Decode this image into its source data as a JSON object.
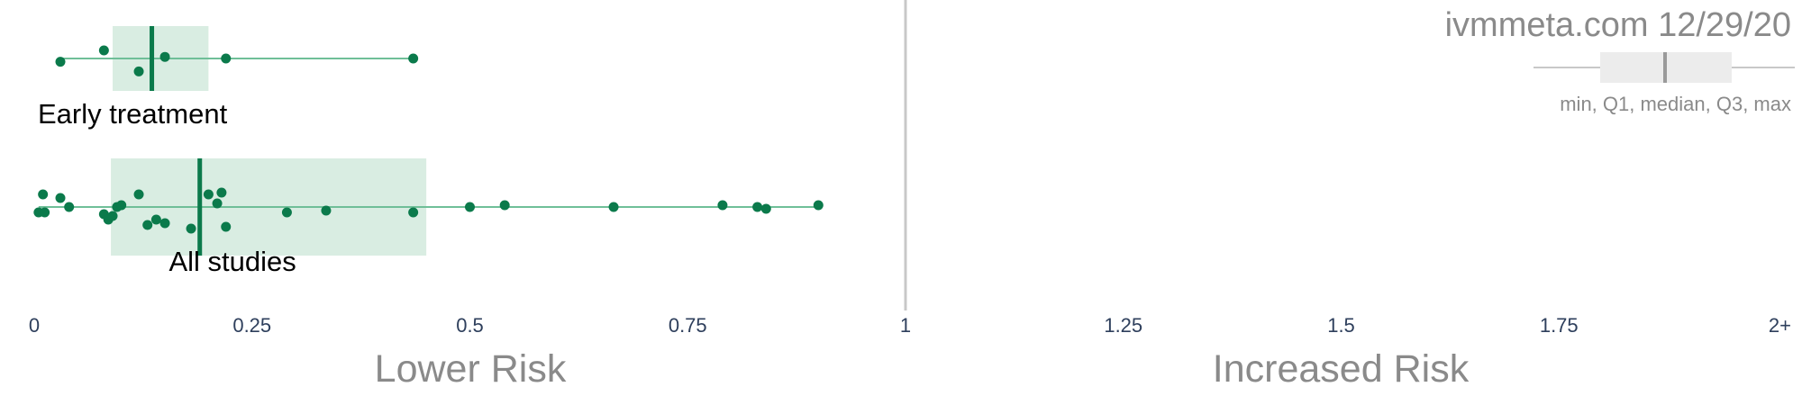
{
  "chart_data": {
    "type": "box-strip",
    "watermark": "ivmmeta.com 12/29/20",
    "legend_caption": "min, Q1, median, Q3, max",
    "x_ticks": [
      "0",
      "0.25",
      "0.5",
      "0.75",
      "1",
      "1.25",
      "1.5",
      "1.75",
      "2+"
    ],
    "xlim": [
      0,
      2
    ],
    "reference_line": 1,
    "region_labels": {
      "lower": "Lower Risk",
      "higher": "Increased Risk"
    },
    "colors": {
      "point": "#0b7a4b",
      "box": "#d9ede2",
      "whisker": "#6fbf98",
      "reference": "#c8c8c8",
      "axis_text": "#2e3f5c",
      "label_gray": "#8a8a8a"
    },
    "groups": [
      {
        "name": "Early treatment",
        "min": 0.03,
        "q1": 0.09,
        "median": 0.135,
        "q3": 0.2,
        "max": 0.435,
        "points": [
          {
            "x": 0.03,
            "j": 0.1
          },
          {
            "x": 0.08,
            "j": -0.25
          },
          {
            "x": 0.12,
            "j": 0.4
          },
          {
            "x": 0.15,
            "j": -0.05
          },
          {
            "x": 0.22,
            "j": 0.0
          },
          {
            "x": 0.435,
            "j": 0.0
          }
        ]
      },
      {
        "name": "All studies",
        "min": 0.005,
        "q1": 0.088,
        "median": 0.19,
        "q3": 0.45,
        "max": 0.9,
        "points": [
          {
            "x": 0.005,
            "j": 0.15
          },
          {
            "x": 0.01,
            "j": -0.35
          },
          {
            "x": 0.012,
            "j": 0.15
          },
          {
            "x": 0.03,
            "j": -0.25
          },
          {
            "x": 0.04,
            "j": 0.0
          },
          {
            "x": 0.08,
            "j": 0.2
          },
          {
            "x": 0.085,
            "j": 0.35
          },
          {
            "x": 0.09,
            "j": 0.25
          },
          {
            "x": 0.095,
            "j": 0.0
          },
          {
            "x": 0.1,
            "j": -0.05
          },
          {
            "x": 0.12,
            "j": -0.35
          },
          {
            "x": 0.13,
            "j": 0.5
          },
          {
            "x": 0.14,
            "j": 0.35
          },
          {
            "x": 0.15,
            "j": 0.45
          },
          {
            "x": 0.18,
            "j": 0.6
          },
          {
            "x": 0.2,
            "j": -0.35
          },
          {
            "x": 0.21,
            "j": -0.1
          },
          {
            "x": 0.215,
            "j": -0.4
          },
          {
            "x": 0.22,
            "j": 0.55
          },
          {
            "x": 0.29,
            "j": 0.15
          },
          {
            "x": 0.335,
            "j": 0.1
          },
          {
            "x": 0.435,
            "j": 0.15
          },
          {
            "x": 0.5,
            "j": 0.0
          },
          {
            "x": 0.54,
            "j": -0.05
          },
          {
            "x": 0.665,
            "j": 0.0
          },
          {
            "x": 0.79,
            "j": -0.05
          },
          {
            "x": 0.83,
            "j": 0.0
          },
          {
            "x": 0.84,
            "j": 0.05
          },
          {
            "x": 0.9,
            "j": -0.05
          }
        ]
      }
    ]
  }
}
